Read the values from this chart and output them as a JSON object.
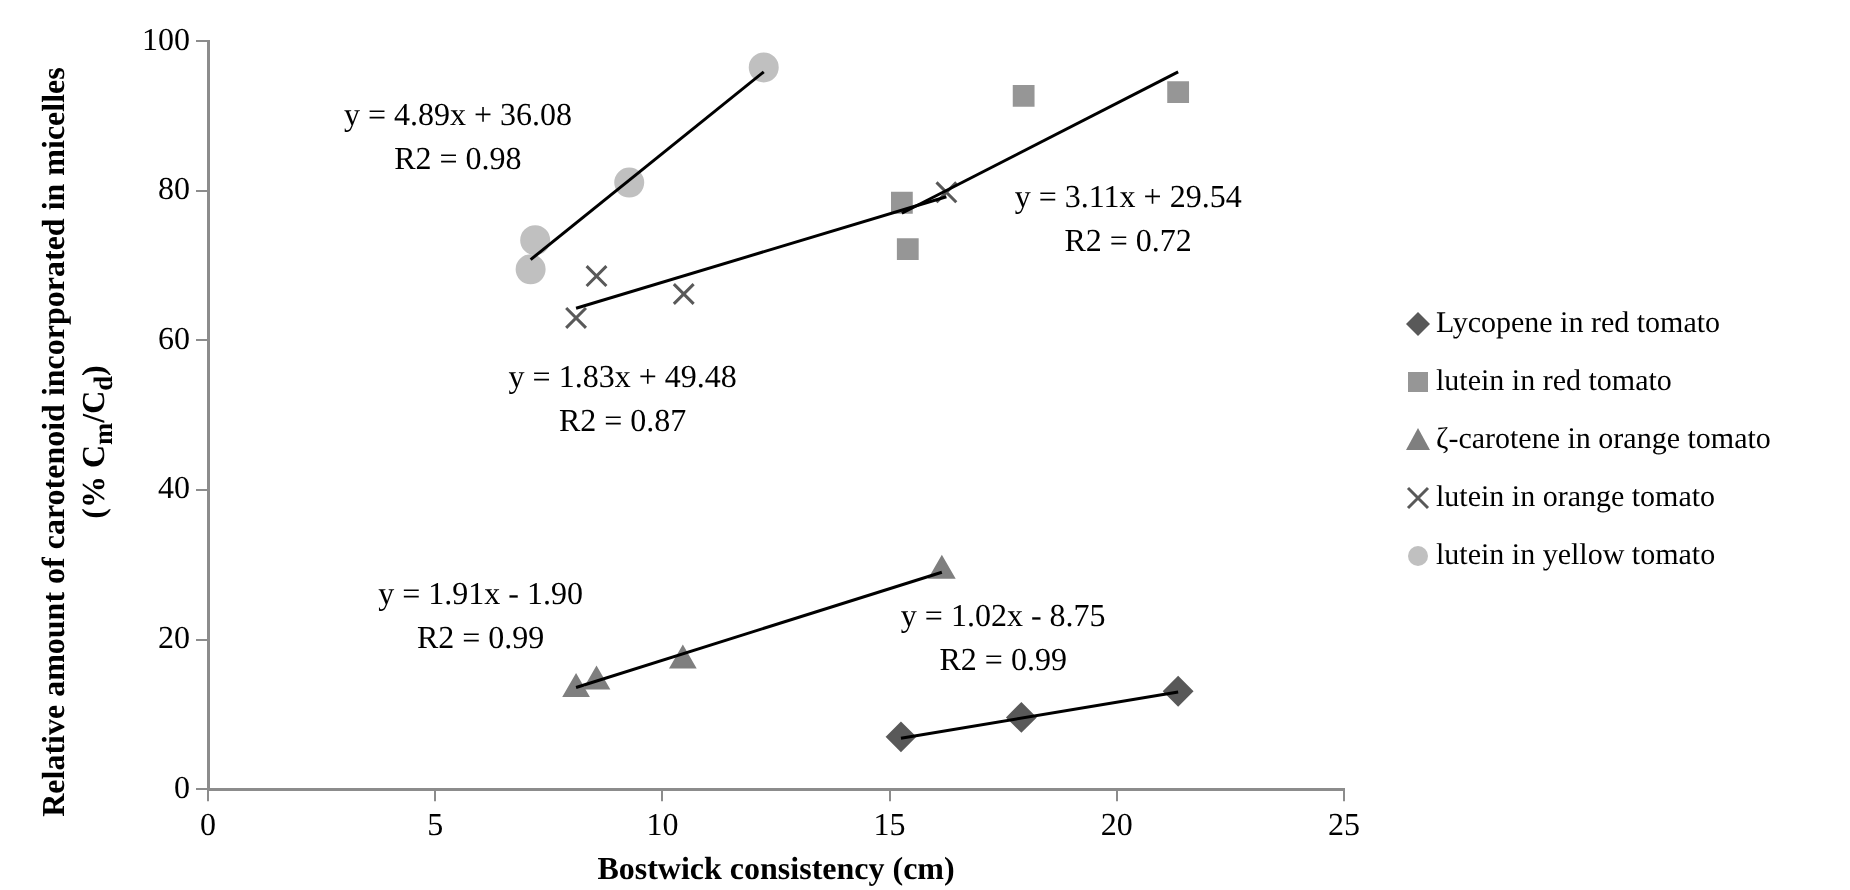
{
  "chart_data": {
    "type": "scatter",
    "xlabel": "Bostwick consistency (cm)",
    "ylabel": "Relative amount of carotenoid incorporated in micelles (% C$_{m}$/C$_{d}$)",
    "xlim": [
      0,
      25
    ],
    "xticks": [
      0,
      5,
      10,
      15,
      20,
      25
    ],
    "ylim": [
      0,
      100
    ],
    "yticks": [
      0,
      20,
      40,
      60,
      80,
      100
    ],
    "grid": false,
    "legend": "right",
    "series": [
      {
        "name": "Lycopene in red tomato",
        "color": "#595959",
        "marker": "diamond",
        "x": [
          15.25,
          17.9,
          21.35
        ],
        "values": [
          7.0,
          9.6,
          13.1
        ]
      },
      {
        "name": "lutein  in red tomato",
        "color": "#969696",
        "marker": "square",
        "x": [
          15.27,
          15.4,
          17.95,
          21.35
        ],
        "values": [
          78.4,
          72.2,
          92.7,
          93.2
        ]
      },
      {
        "name": "ζ-carotene in orange tomato",
        "color": "#7f7f7f",
        "marker": "triangle",
        "x": [
          8.1,
          8.55,
          10.45,
          16.15
        ],
        "values": [
          13.4,
          14.4,
          17.2,
          29.2
        ]
      },
      {
        "name": "lutein in orange tomato",
        "color": "#595959",
        "marker": "cross",
        "x": [
          8.1,
          8.55,
          10.47,
          16.25
        ],
        "values": [
          63.0,
          68.6,
          66.2,
          79.8
        ]
      },
      {
        "name": "lutein  in yellow tomato",
        "color": "#c0c0c0",
        "marker": "circle",
        "x": [
          7.2,
          7.1,
          9.27,
          12.23
        ],
        "values": [
          73.4,
          69.5,
          81.1,
          96.5
        ]
      },
      {
        "type": "line",
        "color": "#000000",
        "marker": "none",
        "x": [
          15.25,
          21.35
        ],
        "values": [
          6.8,
          13.0
        ]
      },
      {
        "type": "line",
        "color": "#000000",
        "marker": "none",
        "x": [
          15.27,
          21.35
        ],
        "values": [
          77.0,
          95.9
        ]
      },
      {
        "type": "line",
        "color": "#000000",
        "marker": "none",
        "x": [
          8.1,
          16.15
        ],
        "values": [
          13.6,
          29.0
        ]
      },
      {
        "type": "line",
        "color": "#000000",
        "marker": "none",
        "x": [
          8.1,
          16.25
        ],
        "values": [
          64.3,
          79.2
        ]
      },
      {
        "type": "line",
        "color": "#000000",
        "marker": "none",
        "x": [
          7.1,
          12.23
        ],
        "values": [
          70.8,
          95.9
        ]
      }
    ],
    "annotations": [
      "y = 4.89x + 36.08\nR2 = 0.98",
      "y = 1.83x + 49.48\nR2 = 0.87",
      "y = 3.11x + 29.54\nR2 = 0.72",
      "y = 1.91x - 1.90\nR2 = 0.99",
      "y = 1.02x - 8.75\nR2 = 0.99"
    ]
  }
}
